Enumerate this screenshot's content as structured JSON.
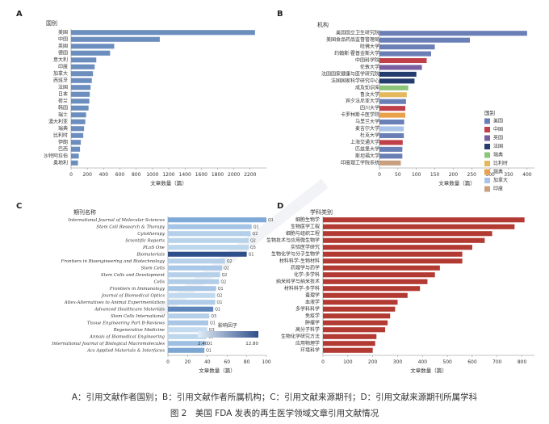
{
  "captions": {
    "line1": "A：引用文献作者国别；B：引用文献作者所属机构；C：引用文献来源期刊；D：引用文献来源期刊所属学科",
    "line2": "图 2　美国 FDA 发表的再生医学领域文章引用文献情况"
  },
  "chart_data": [
    {
      "panel": "A",
      "type": "bar",
      "orientation": "horizontal",
      "category_header": "国别",
      "xlabel": "文章数量（篇）",
      "xlim": [
        0,
        2400
      ],
      "xticks": [
        0,
        200,
        400,
        600,
        800,
        1000,
        1200,
        1400,
        1600,
        1800,
        2000,
        2200
      ],
      "bar_color": "#6c8ebf",
      "categories": [
        "美国",
        "中国",
        "英国",
        "德国",
        "意大利",
        "印度",
        "加拿大",
        "西班牙",
        "法国",
        "日本",
        "荷兰",
        "韩国",
        "瑞士",
        "澳大利亚",
        "瑞典",
        "比利时",
        "伊朗",
        "巴西",
        "沙特阿拉伯",
        "奥地利"
      ],
      "values": [
        2260,
        1090,
        530,
        480,
        310,
        290,
        270,
        255,
        240,
        230,
        225,
        215,
        185,
        175,
        160,
        150,
        120,
        110,
        95,
        85
      ]
    },
    {
      "panel": "B",
      "type": "bar",
      "orientation": "horizontal",
      "category_header": "机构",
      "xlabel": "文章数量（篇）",
      "xlim": [
        0,
        420
      ],
      "xticks": [
        0,
        50,
        100,
        150,
        200,
        250,
        300,
        350,
        400
      ],
      "legend_title": "国别",
      "legend": [
        {
          "name": "美国",
          "color": "#6a7fb5"
        },
        {
          "name": "中国",
          "color": "#c0404a"
        },
        {
          "name": "英国",
          "color": "#7a5fa0"
        },
        {
          "name": "法国",
          "color": "#253d6e"
        },
        {
          "name": "瑞典",
          "color": "#8cc57a"
        },
        {
          "name": "比利时",
          "color": "#e5b85c"
        },
        {
          "name": "瑞典",
          "color": "#e8a04a"
        },
        {
          "name": "加拿大",
          "color": "#a9c4e8"
        },
        {
          "name": "印度",
          "color": "#c8a080"
        }
      ],
      "categories": [
        "美国国立卫生研究院",
        "美国食品药品监督管理局",
        "哈佛大学",
        "约翰斯·霍普金斯大学",
        "中国科学院",
        "伦敦大学",
        "法国国家健康与医学研究院",
        "法国国家科学研究中心",
        "成及知识库",
        "鲁汶大学",
        "宾夕法尼亚大学",
        "四川大学",
        "卡罗林斯卡医学院",
        "马里兰大学",
        "麦吉尔大学",
        "杜克大学",
        "上海交通大学",
        "匹兹堡大学",
        "斯坦福大学",
        "印度理工学院系统"
      ],
      "values": [
        400,
        245,
        150,
        140,
        128,
        115,
        100,
        95,
        78,
        74,
        72,
        70,
        70,
        67,
        66,
        66,
        63,
        62,
        62,
        58
      ],
      "bar_colors": [
        "#6a7fb5",
        "#6a7fb5",
        "#6a7fb5",
        "#6a7fb5",
        "#c0404a",
        "#7a5fa0",
        "#253d6e",
        "#253d6e",
        "#8cc57a",
        "#e5b85c",
        "#6a7fb5",
        "#c0404a",
        "#e8a04a",
        "#6a7fb5",
        "#a9c4e8",
        "#6a7fb5",
        "#c0404a",
        "#6a7fb5",
        "#6a7fb5",
        "#c8a080"
      ]
    },
    {
      "panel": "C",
      "type": "bar",
      "orientation": "horizontal",
      "category_header": "期刊名称",
      "xlabel": "文章数量（篇）",
      "xlim": [
        0,
        100
      ],
      "xticks": [
        0,
        20,
        40,
        60,
        80,
        100
      ],
      "colorbar_title": "影响因子",
      "colorbar_range": [
        "2.40",
        "12.80"
      ],
      "categories": [
        "International Journal of Molecular Sciences",
        "Stem Cell Research & Therapy",
        "Cytotherapy",
        "Scientific Reports",
        "PLoS One",
        "Biomaterials",
        "Frontiers in Bioengineering and Biotechnology",
        "Stem Cells",
        "Stem Cells and Development",
        "Cells",
        "Frontiers in Immunology",
        "Journal of Biomedical Optics",
        "Altex-Alternatives to Animal Experimentation",
        "Advanced Healthcare Materials",
        "Stem Cells International",
        "Tissue Engineering Part B-Reviews",
        "Regenerative Medicine",
        "Annals of Biomedical Engineering",
        "International Journal of Biological Macromolecules",
        "Acs Applied Materials & Interfaces"
      ],
      "values": [
        100,
        85,
        84,
        82,
        82,
        80,
        58,
        55,
        53,
        52,
        49,
        48,
        48,
        46,
        42,
        41,
        40,
        39,
        38,
        37
      ],
      "quartiles": [
        "Q1",
        "Q1",
        "Q2",
        "Q2",
        "Q3",
        "Q1",
        "Q2",
        "Q2",
        "Q2",
        "Q2",
        "Q1",
        "Q2",
        "Q1",
        "Q1",
        "Q3",
        "Q1",
        "Q3",
        "Q3",
        "Q1",
        "Q1"
      ],
      "bar_colors": [
        "#7fa9d6",
        "#a5c4e6",
        "#b3cfe9",
        "#b8d2ea",
        "#bcd6ec",
        "#2f4f8a",
        "#b6d0ea",
        "#aac8e8",
        "#b6d0ea",
        "#b2cde8",
        "#a7c6e6",
        "#c1d9ef",
        "#b0cce8",
        "#5d85ba",
        "#b6d0ea",
        "#a9c6e7",
        "#c4dbef",
        "#bcd6ec",
        "#9fbfe2",
        "#7ca7d2"
      ]
    },
    {
      "panel": "D",
      "type": "bar",
      "orientation": "horizontal",
      "category_header": "学科类别",
      "xlabel": "文章数量（篇）",
      "xlim": [
        0,
        850
      ],
      "xticks": [
        0,
        100,
        200,
        300,
        400,
        500,
        600,
        700,
        800
      ],
      "bar_color": "#b23a32",
      "categories": [
        "细胞生物学",
        "生物医学工程",
        "细胞与组织工程",
        "生物技术与应用微生物学",
        "实验医学研究",
        "生物化学与分子生物学",
        "材料科学-生物材料",
        "药理学与药学",
        "化学-多学科",
        "纳米科学与纳米技术",
        "材料科学-多学科",
        "毒理学",
        "血液学",
        "多学科科学",
        "免疫学",
        "肿瘤学",
        "高分子科学",
        "生物化学研究方法",
        "应用物理学",
        "环境科学"
      ],
      "values": [
        810,
        770,
        680,
        650,
        600,
        560,
        560,
        470,
        450,
        420,
        390,
        340,
        300,
        290,
        270,
        260,
        250,
        215,
        210,
        200
      ]
    }
  ]
}
